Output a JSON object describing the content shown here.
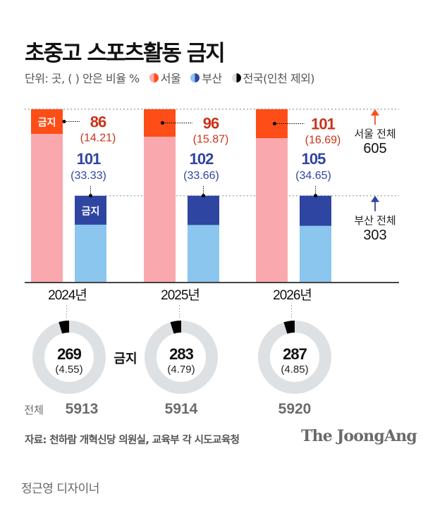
{
  "title": "초중고 스포츠활동 금지",
  "legend": {
    "unit": "단위: 곳, ( ) 안은 비율 %",
    "items": [
      {
        "label": "서울",
        "light": "#f9a9ad",
        "dark": "#ff4d17"
      },
      {
        "label": "부산",
        "light": "#8ac6ee",
        "dark": "#2f45a2"
      },
      {
        "label": "전국(인천 제외)",
        "light": "#dde1e4",
        "dark": "#000000"
      }
    ]
  },
  "chart_data": [
    {
      "type": "bar",
      "title": "초중고 스포츠활동 금지 (서울·부산)",
      "categories": [
        "2024년",
        "2025년",
        "2026년"
      ],
      "series": [
        {
          "name": "서울 전체",
          "values": [
            605,
            605,
            605
          ],
          "color": "#f9a9ad"
        },
        {
          "name": "서울 금지",
          "values": [
            86,
            96,
            101
          ],
          "ratios": [
            "(14.21)",
            "(15.87)",
            "(16.69)"
          ],
          "color": "#ff4d17"
        },
        {
          "name": "부산 전체",
          "values": [
            303,
            303,
            303
          ],
          "color": "#8ac6ee"
        },
        {
          "name": "부산 금지",
          "values": [
            101,
            102,
            105
          ],
          "ratios": [
            "(33.33)",
            "(33.66)",
            "(34.65)"
          ],
          "color": "#2f45a2"
        }
      ],
      "ylim": [
        0,
        605
      ],
      "bar_inner_label": "금지",
      "annotations": {
        "seoul_total_label": "서울 전체",
        "seoul_total_value": "605",
        "busan_total_label": "부산 전체",
        "busan_total_value": "303"
      },
      "xlabel": "",
      "ylabel": "곳"
    },
    {
      "type": "pie",
      "title": "전국(인천 제외)",
      "categories": [
        "2024년",
        "2025년",
        "2026년"
      ],
      "series": [
        {
          "name": "금지",
          "values": [
            269,
            283,
            287
          ],
          "ratios": [
            "(4.55)",
            "(4.79)",
            "(4.85)"
          ],
          "color": "#000000"
        },
        {
          "name": "전체",
          "values": [
            5913,
            5914,
            5920
          ],
          "color": "#dde1e4"
        }
      ],
      "center_label": "금지",
      "total_prefix": "전체"
    }
  ],
  "footer": {
    "source": "자료: 천하람 개혁신당 의원실, 교육부 각 시도교육청",
    "brand": "The JoongAng",
    "designer": "정근영 디자이너"
  }
}
